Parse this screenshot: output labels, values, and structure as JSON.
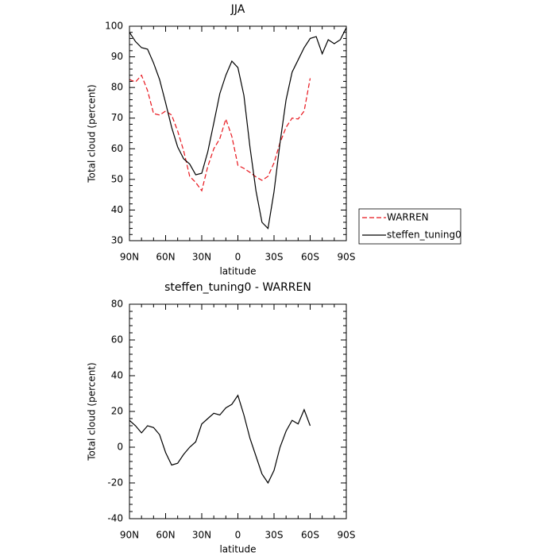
{
  "chart_data": [
    {
      "type": "line",
      "title": "JJA",
      "xlabel": "latitude",
      "ylabel": "Total cloud (percent)",
      "x": [
        90,
        85,
        80,
        75,
        70,
        65,
        60,
        55,
        50,
        45,
        40,
        35,
        30,
        25,
        20,
        15,
        10,
        5,
        0,
        -5,
        -10,
        -15,
        -20,
        -25,
        -30,
        -35,
        -40,
        -45,
        -50,
        -55,
        -60,
        -65,
        -70,
        -75,
        -80,
        -85,
        -90
      ],
      "series": [
        {
          "name": "WARREN",
          "color": "#e8141b",
          "linestyle": "dashed",
          "values": [
            82.6,
            81.8,
            84,
            79,
            71.5,
            71,
            72.3,
            71,
            65.8,
            59.3,
            51,
            49,
            46.3,
            54.2,
            60,
            63.3,
            69.7,
            64,
            54.6,
            53.6,
            52.3,
            50.8,
            49.7,
            51,
            55.4,
            62,
            67,
            70,
            69.7,
            72.3,
            83,
            null,
            null,
            null,
            null,
            null,
            null
          ]
        },
        {
          "name": "steffen_tuning0",
          "color": "#000000",
          "linestyle": "solid",
          "values": [
            98,
            95,
            93,
            92.5,
            88,
            82.6,
            75,
            67,
            60.6,
            56.7,
            55,
            51.5,
            52,
            59,
            68.4,
            78,
            84,
            88.6,
            86.5,
            77.4,
            60.6,
            46.3,
            36,
            34,
            46,
            62,
            76,
            85,
            89,
            93,
            96,
            96.6,
            91,
            95.6,
            94.3,
            95.6,
            99.5
          ]
        }
      ],
      "xlim": [
        90,
        -90
      ],
      "xticks": [
        {
          "value": 90,
          "label": "90N"
        },
        {
          "value": 60,
          "label": "60N"
        },
        {
          "value": 30,
          "label": "30N"
        },
        0,
        {
          "value": -30,
          "label": "30S"
        },
        {
          "value": -60,
          "label": "60S"
        },
        {
          "value": -90,
          "label": "90S"
        }
      ],
      "ylim": [
        30,
        100
      ],
      "yticks": [
        30,
        40,
        50,
        60,
        70,
        80,
        90,
        100
      ],
      "legend": "right"
    },
    {
      "type": "line",
      "title": "steffen_tuning0 - WARREN",
      "xlabel": "latitude",
      "ylabel": "Total cloud (percent)",
      "x": [
        90,
        85,
        80,
        75,
        70,
        65,
        60,
        55,
        50,
        45,
        40,
        35,
        30,
        25,
        20,
        15,
        10,
        5,
        0,
        -5,
        -10,
        -15,
        -20,
        -25,
        -30,
        -35,
        -40,
        -45,
        -50,
        -55,
        -60
      ],
      "series": [
        {
          "color": "#000000",
          "linestyle": "solid",
          "values": [
            15,
            12,
            8,
            12,
            11,
            7,
            -3,
            -10,
            -9,
            -4,
            0,
            3,
            13,
            16,
            19,
            18,
            22,
            24,
            29,
            18,
            5,
            -5,
            -15,
            -20,
            -13,
            0,
            9,
            15,
            13,
            21,
            12
          ]
        }
      ],
      "xlim": [
        90,
        -90
      ],
      "xticks": [
        {
          "value": 90,
          "label": "90N"
        },
        {
          "value": 60,
          "label": "60N"
        },
        {
          "value": 30,
          "label": "30N"
        },
        0,
        {
          "value": -30,
          "label": "30S"
        },
        {
          "value": -60,
          "label": "60S"
        },
        {
          "value": -90,
          "label": "90S"
        }
      ],
      "ylim": [
        -40,
        80
      ],
      "yticks": [
        -40,
        -20,
        0,
        20,
        40,
        60,
        80
      ]
    }
  ]
}
